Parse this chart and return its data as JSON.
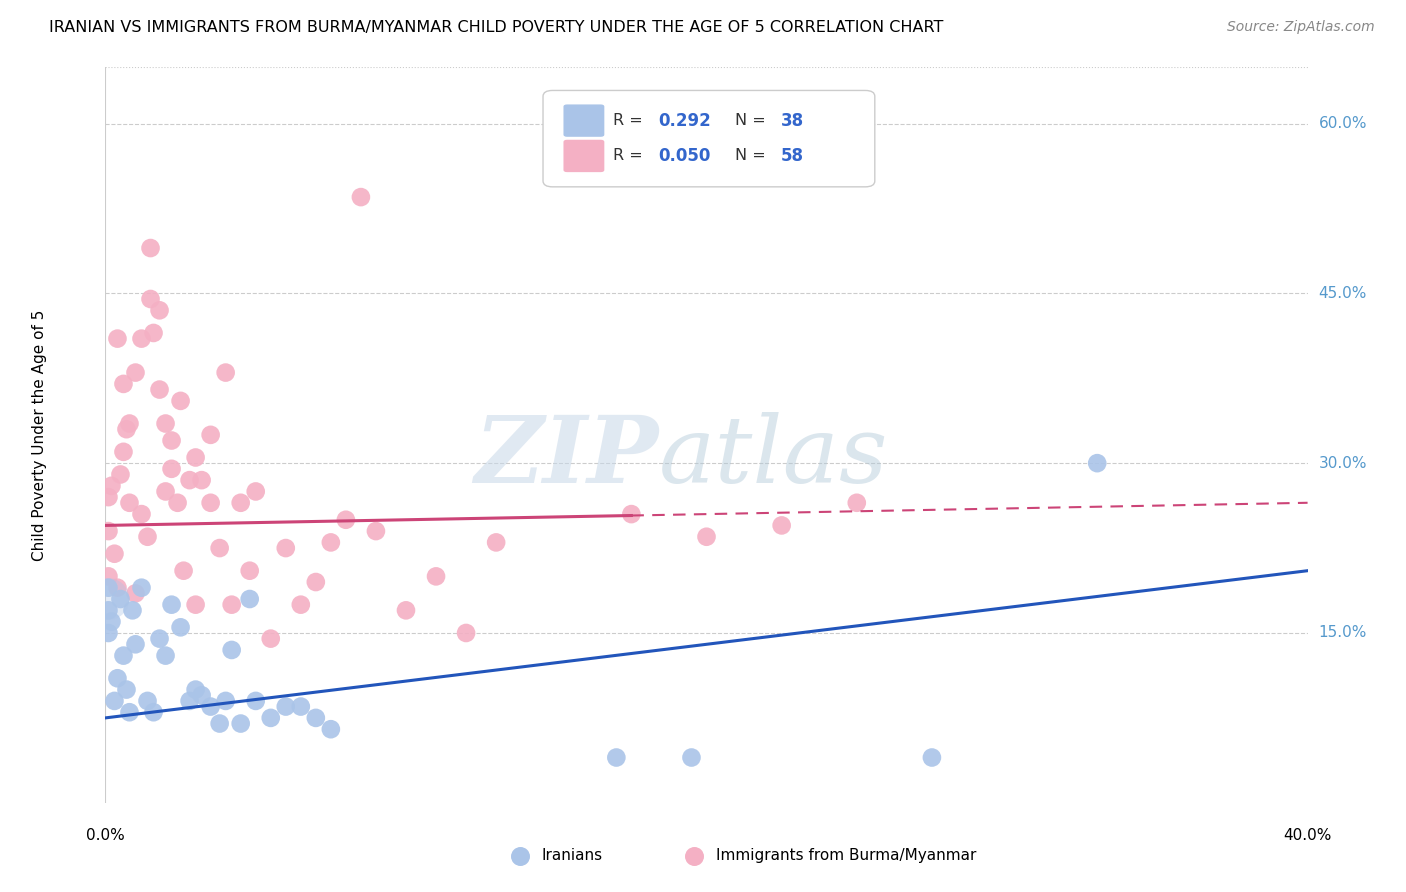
{
  "title": "IRANIAN VS IMMIGRANTS FROM BURMA/MYANMAR CHILD POVERTY UNDER THE AGE OF 5 CORRELATION CHART",
  "source": "Source: ZipAtlas.com",
  "ylabel": "Child Poverty Under the Age of 5",
  "legend_label1": "Iranians",
  "legend_label2": "Immigrants from Burma/Myanmar",
  "color_blue": "#aac4e8",
  "color_blue_dark": "#5588cc",
  "color_pink": "#f4b0c4",
  "line_blue": "#2255bb",
  "line_pink": "#cc4477",
  "xlim": [
    0.0,
    0.4
  ],
  "ylim": [
    0.0,
    0.65
  ],
  "blue_line_x0": 0.0,
  "blue_line_y0": 0.075,
  "blue_line_x1": 0.4,
  "blue_line_y1": 0.205,
  "pink_line_x0": 0.0,
  "pink_line_y0": 0.245,
  "pink_line_x1": 0.4,
  "pink_line_y1": 0.265,
  "blue_x": [
    0.001,
    0.001,
    0.001,
    0.002,
    0.003,
    0.004,
    0.005,
    0.006,
    0.007,
    0.008,
    0.009,
    0.01,
    0.012,
    0.014,
    0.016,
    0.018,
    0.02,
    0.022,
    0.025,
    0.028,
    0.03,
    0.032,
    0.035,
    0.038,
    0.04,
    0.042,
    0.045,
    0.048,
    0.05,
    0.055,
    0.06,
    0.065,
    0.07,
    0.075,
    0.17,
    0.195,
    0.275,
    0.33
  ],
  "blue_y": [
    0.19,
    0.17,
    0.15,
    0.16,
    0.09,
    0.11,
    0.18,
    0.13,
    0.1,
    0.08,
    0.17,
    0.14,
    0.19,
    0.09,
    0.08,
    0.145,
    0.13,
    0.175,
    0.155,
    0.09,
    0.1,
    0.095,
    0.085,
    0.07,
    0.09,
    0.135,
    0.07,
    0.18,
    0.09,
    0.075,
    0.085,
    0.085,
    0.075,
    0.065,
    0.04,
    0.04,
    0.04,
    0.3
  ],
  "pink_x": [
    0.001,
    0.001,
    0.001,
    0.002,
    0.003,
    0.004,
    0.005,
    0.006,
    0.007,
    0.008,
    0.01,
    0.012,
    0.014,
    0.016,
    0.018,
    0.02,
    0.022,
    0.024,
    0.026,
    0.028,
    0.03,
    0.032,
    0.035,
    0.038,
    0.04,
    0.042,
    0.045,
    0.048,
    0.05,
    0.055,
    0.06,
    0.065,
    0.07,
    0.075,
    0.08,
    0.09,
    0.1,
    0.11,
    0.12,
    0.13,
    0.015,
    0.02,
    0.025,
    0.03,
    0.035,
    0.175,
    0.2,
    0.225,
    0.25,
    0.085,
    0.01,
    0.018,
    0.022,
    0.015,
    0.012,
    0.008,
    0.006,
    0.004
  ],
  "pink_y": [
    0.27,
    0.24,
    0.2,
    0.28,
    0.22,
    0.19,
    0.29,
    0.31,
    0.33,
    0.265,
    0.185,
    0.255,
    0.235,
    0.415,
    0.435,
    0.275,
    0.295,
    0.265,
    0.205,
    0.285,
    0.305,
    0.285,
    0.265,
    0.225,
    0.38,
    0.175,
    0.265,
    0.205,
    0.275,
    0.145,
    0.225,
    0.175,
    0.195,
    0.23,
    0.25,
    0.24,
    0.17,
    0.2,
    0.15,
    0.23,
    0.445,
    0.335,
    0.355,
    0.175,
    0.325,
    0.255,
    0.235,
    0.245,
    0.265,
    0.535,
    0.38,
    0.365,
    0.32,
    0.49,
    0.41,
    0.335,
    0.37,
    0.41
  ]
}
